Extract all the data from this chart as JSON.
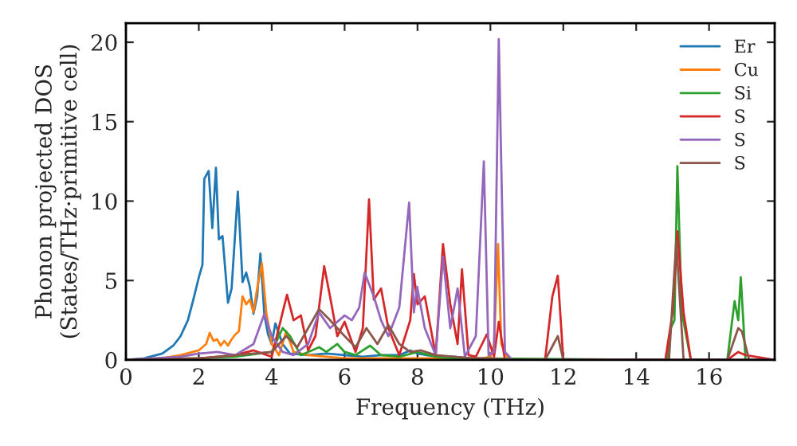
{
  "chart_data": {
    "type": "line",
    "xlabel": "Frequency (THz)",
    "ylabel": "Phonon projected DOS\n(States/THz·primitive cell)",
    "xlim": [
      0,
      17.8
    ],
    "ylim": [
      0,
      21.2
    ],
    "xticks": [
      0,
      2,
      4,
      6,
      8,
      10,
      12,
      14,
      16
    ],
    "yticks": [
      0,
      5,
      10,
      15,
      20
    ],
    "grid": false,
    "legend": "top right",
    "marker": "none",
    "line_style": "solid",
    "series": [
      {
        "name": "Er",
        "color": "#1f77b4",
        "x": [
          0,
          0.5,
          1.0,
          1.3,
          1.5,
          1.7,
          1.85,
          2.0,
          2.1,
          2.15,
          2.27,
          2.37,
          2.47,
          2.55,
          2.65,
          2.8,
          2.9,
          3.07,
          3.2,
          3.3,
          3.4,
          3.5,
          3.6,
          3.69,
          3.8,
          3.9,
          4.0,
          4.1,
          4.3,
          4.5,
          5.0,
          5.5,
          6.0,
          6.5,
          7.0,
          7.5,
          7.8,
          8.0,
          8.5,
          9.0,
          9.5
        ],
        "values": [
          0,
          0.1,
          0.4,
          0.9,
          1.5,
          2.5,
          3.8,
          5.2,
          6.0,
          11.4,
          11.9,
          8.3,
          12.1,
          7.6,
          7.8,
          3.6,
          4.5,
          10.6,
          4.9,
          5.5,
          4.6,
          2.9,
          4.0,
          6.7,
          2.8,
          1.6,
          1.0,
          2.3,
          1.0,
          0.4,
          0.3,
          0.4,
          0.3,
          0.2,
          0.3,
          0.3,
          0.6,
          0.4,
          0.2,
          0.2,
          0.1
        ]
      },
      {
        "name": "Cu",
        "color": "#ff7f0e",
        "x": [
          0,
          1.0,
          1.5,
          2.0,
          2.2,
          2.3,
          2.4,
          2.5,
          2.6,
          2.7,
          2.8,
          2.9,
          3.0,
          3.1,
          3.2,
          3.3,
          3.4,
          3.5,
          3.6,
          3.73,
          3.85,
          4.0,
          4.2,
          4.4,
          4.6,
          5.0,
          5.5,
          6.0,
          7.0,
          8.0,
          9.0,
          9.8,
          10.0,
          10.1,
          10.21,
          10.3,
          10.5,
          17.8
        ],
        "values": [
          0,
          0.1,
          0.3,
          0.6,
          1.0,
          1.7,
          1.2,
          1.3,
          0.9,
          1.2,
          0.9,
          1.3,
          1.6,
          1.8,
          4.0,
          3.5,
          3.8,
          3.0,
          4.5,
          6.1,
          3.0,
          1.0,
          0.3,
          1.8,
          0.5,
          0.3,
          0.2,
          0.1,
          0.1,
          0.1,
          0.1,
          0.1,
          0.2,
          1.0,
          7.3,
          1.0,
          0,
          0
        ]
      },
      {
        "name": "Si",
        "color": "#2ca02c",
        "x": [
          0,
          2,
          3,
          4.0,
          4.3,
          4.5,
          4.8,
          5.0,
          5.3,
          5.5,
          5.8,
          6.0,
          6.3,
          6.5,
          6.7,
          7.0,
          7.5,
          8.0,
          8.5,
          9.0,
          9.5,
          10.0,
          14.85,
          14.95,
          15.05,
          15.13,
          15.25,
          15.5,
          16.5,
          16.7,
          16.8,
          16.87,
          17.0,
          17.8
        ],
        "values": [
          0,
          0.1,
          0.2,
          0.5,
          2.0,
          1.5,
          0.3,
          0.5,
          0.8,
          0.5,
          1.0,
          0.5,
          0.3,
          0.6,
          0.9,
          0.3,
          0.2,
          0.5,
          0.2,
          0.1,
          0.1,
          null,
          0,
          2.0,
          2.5,
          12.2,
          3.0,
          0,
          0,
          3.7,
          2.5,
          5.2,
          0,
          0
        ]
      },
      {
        "name": "S",
        "color": "#d62728",
        "x": [
          0,
          2,
          3.0,
          3.5,
          4.0,
          4.3,
          4.42,
          4.6,
          4.8,
          5.0,
          5.2,
          5.44,
          5.6,
          5.8,
          6.0,
          6.3,
          6.5,
          6.67,
          6.8,
          7.0,
          7.2,
          7.5,
          7.8,
          7.9,
          8.0,
          8.2,
          8.5,
          8.7,
          8.9,
          9.1,
          9.22,
          9.4,
          9.6,
          9.9,
          10.1,
          10.23,
          10.4,
          11.0,
          11.5,
          11.7,
          11.85,
          12.0,
          14.8,
          15.0,
          15.13,
          15.3,
          15.5,
          16.5,
          16.8,
          17.0,
          17.8
        ],
        "values": [
          0,
          0.1,
          0.3,
          0.6,
          0.2,
          3.0,
          4.1,
          2.5,
          2.8,
          0.6,
          1.5,
          5.9,
          4.0,
          1.5,
          2.4,
          0.5,
          2.0,
          10.1,
          3.8,
          4.5,
          2.0,
          0.3,
          2.5,
          5.4,
          3.5,
          4.0,
          0.3,
          7.3,
          3.5,
          1.0,
          5.7,
          0.3,
          0.2,
          1.6,
          0.2,
          2.4,
          0,
          0,
          0,
          4.0,
          5.3,
          0,
          0,
          3.0,
          8.1,
          3.0,
          0,
          0,
          0.5,
          0.3,
          0
        ]
      },
      {
        "name": "S",
        "color": "#9467bd",
        "x": [
          0,
          1.5,
          2.0,
          2.5,
          3.0,
          3.5,
          3.8,
          4.0,
          4.3,
          4.6,
          5.0,
          5.3,
          5.6,
          6.0,
          6.2,
          6.4,
          6.55,
          6.8,
          7.0,
          7.2,
          7.5,
          7.77,
          7.9,
          7.99,
          8.2,
          8.5,
          8.7,
          8.9,
          9.1,
          9.3,
          9.6,
          9.82,
          9.95,
          10.1,
          10.23,
          10.4,
          10.6,
          17.8
        ],
        "values": [
          0,
          0.2,
          0.4,
          0.5,
          0.3,
          1.0,
          2.9,
          1.5,
          0.5,
          0.3,
          1.0,
          3.0,
          2.0,
          2.8,
          2.5,
          3.3,
          5.5,
          4.0,
          2.5,
          1.5,
          3.3,
          9.9,
          3.0,
          4.6,
          2.0,
          0.3,
          6.5,
          2.0,
          4.5,
          0.2,
          1.5,
          12.5,
          0.3,
          0.5,
          20.2,
          0.5,
          0,
          0
        ]
      },
      {
        "name": "S",
        "color": "#8c564b",
        "x": [
          0,
          2,
          3,
          4.0,
          4.4,
          4.7,
          5.0,
          5.3,
          5.6,
          6.0,
          6.3,
          6.6,
          6.9,
          7.2,
          7.5,
          7.8,
          8.1,
          8.5,
          9.0,
          9.5,
          10.0,
          10.5,
          11.5,
          11.85,
          12.0,
          14.9,
          15.1,
          15.3,
          16.5,
          16.8,
          16.9,
          17.1,
          17.8
        ],
        "values": [
          0,
          0.1,
          0.3,
          0.5,
          1.5,
          0.8,
          2.0,
          3.2,
          2.5,
          1.5,
          0.8,
          2.0,
          1.0,
          2.2,
          1.0,
          0.5,
          0.6,
          0.3,
          0.2,
          0.1,
          0.1,
          0,
          0,
          1.5,
          0,
          0,
          7.5,
          0,
          0,
          2.0,
          1.8,
          0,
          0
        ]
      }
    ]
  }
}
